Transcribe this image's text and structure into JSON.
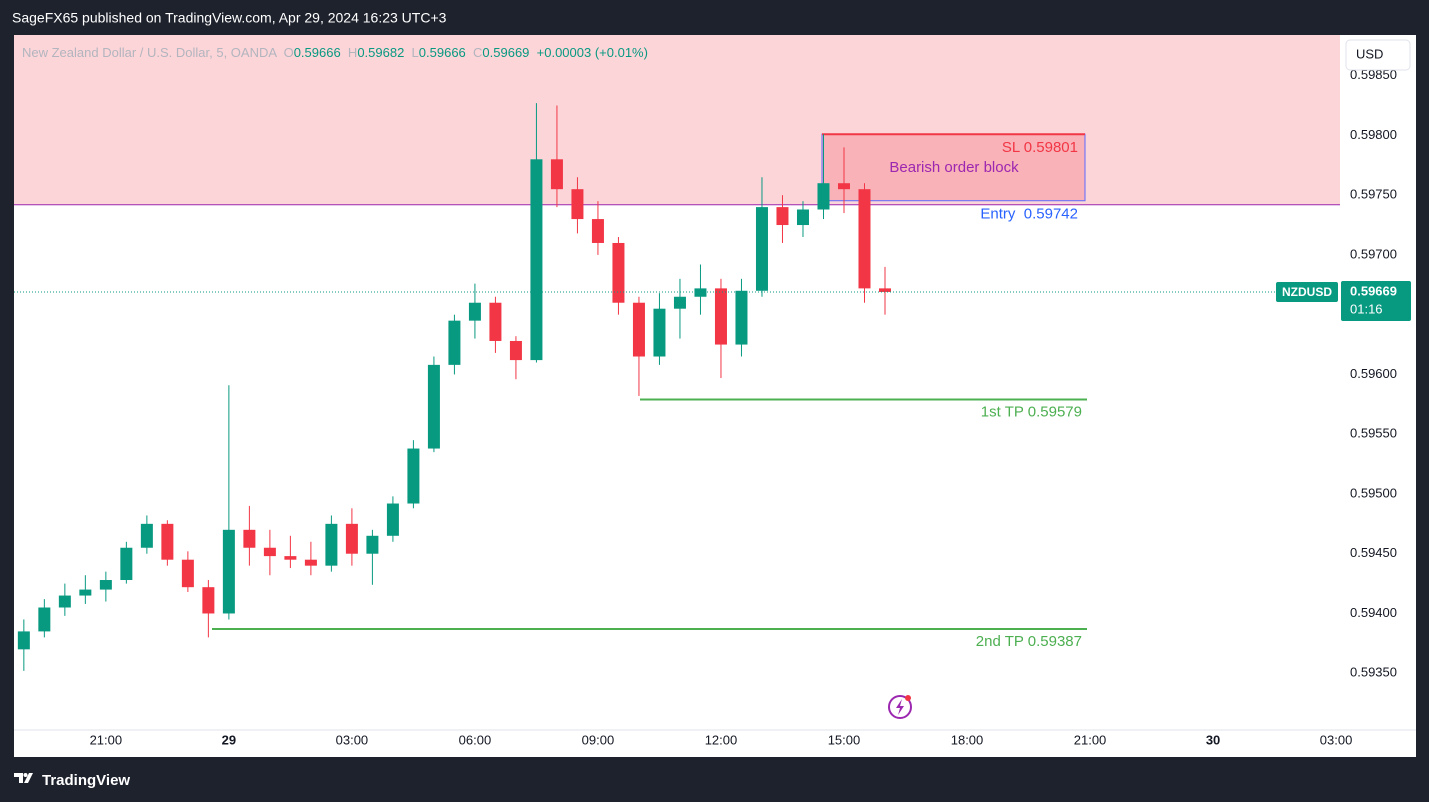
{
  "header": {
    "text": "SageFX65 published on TradingView.com, Apr 29, 2024 16:23 UTC+3"
  },
  "footer": {
    "brand": "TradingView"
  },
  "chart_data": {
    "type": "candlestick",
    "title": "New Zealand Dollar / U.S. Dollar, 5, OANDA",
    "ohlc_legend": [
      {
        "label": "O",
        "value": "0.59666"
      },
      {
        "label": "H",
        "value": "0.59682"
      },
      {
        "label": "L",
        "value": "0.59666"
      },
      {
        "label": "C",
        "value": "0.59669"
      }
    ],
    "change": "+0.00003 (+0.01%)",
    "currency": "USD",
    "symbol": "NZDUSD",
    "last_price": 0.59669,
    "countdown": "01:16",
    "up_color": "#089981",
    "down_color": "#f23645",
    "grid": false,
    "x": [
      -5,
      -4.5,
      -4,
      -3.5,
      -3,
      -2.5,
      -2,
      -1.5,
      -1,
      -0.5,
      0,
      0.5,
      1,
      1.5,
      2,
      2.5,
      3,
      3.5,
      4,
      4.5,
      5,
      5.5,
      6,
      6.5,
      7,
      7.5,
      8,
      8.5,
      9,
      9.5,
      10,
      10.5,
      11,
      11.5,
      12,
      12.5,
      13,
      13.5,
      14,
      14.5,
      15,
      15.5,
      16
    ],
    "open": [
      0.5937,
      0.59385,
      0.59405,
      0.59415,
      0.5942,
      0.59428,
      0.59455,
      0.59475,
      0.59445,
      0.59422,
      0.594,
      0.5947,
      0.59455,
      0.59448,
      0.59445,
      0.5944,
      0.59475,
      0.5945,
      0.59465,
      0.59492,
      0.59538,
      0.59608,
      0.59645,
      0.5966,
      0.59628,
      0.59612,
      0.5978,
      0.59755,
      0.5973,
      0.5971,
      0.5966,
      0.59615,
      0.59655,
      0.59665,
      0.59672,
      0.59625,
      0.5967,
      0.5974,
      0.59725,
      0.59738,
      0.5976,
      0.59755,
      0.59672
    ],
    "high": [
      0.59395,
      0.59412,
      0.59425,
      0.59432,
      0.59435,
      0.5946,
      0.59482,
      0.59478,
      0.59452,
      0.59428,
      0.59591,
      0.5949,
      0.5947,
      0.59465,
      0.5946,
      0.59482,
      0.59488,
      0.5947,
      0.59498,
      0.59545,
      0.59615,
      0.5965,
      0.59676,
      0.59665,
      0.59632,
      0.59827,
      0.59825,
      0.59765,
      0.59745,
      0.59715,
      0.59665,
      0.59668,
      0.5968,
      0.59692,
      0.5968,
      0.5968,
      0.59765,
      0.5975,
      0.59745,
      0.59801,
      0.5979,
      0.5976,
      0.5969
    ],
    "low": [
      0.59352,
      0.5938,
      0.59398,
      0.59408,
      0.5941,
      0.59425,
      0.5945,
      0.5944,
      0.59418,
      0.5938,
      0.59395,
      0.5944,
      0.59432,
      0.59438,
      0.59432,
      0.59435,
      0.5944,
      0.59424,
      0.5946,
      0.59488,
      0.59535,
      0.596,
      0.5963,
      0.59618,
      0.59596,
      0.5961,
      0.5974,
      0.59718,
      0.597,
      0.5965,
      0.59582,
      0.59608,
      0.5963,
      0.5965,
      0.59597,
      0.59615,
      0.59665,
      0.5971,
      0.59715,
      0.5973,
      0.59735,
      0.5966,
      0.5965
    ],
    "close": [
      0.59385,
      0.59405,
      0.59415,
      0.5942,
      0.59428,
      0.59455,
      0.59475,
      0.59445,
      0.59422,
      0.594,
      0.5947,
      0.59455,
      0.59448,
      0.59445,
      0.5944,
      0.59475,
      0.5945,
      0.59465,
      0.59492,
      0.59538,
      0.59608,
      0.59645,
      0.5966,
      0.59628,
      0.59612,
      0.5978,
      0.59755,
      0.5973,
      0.5971,
      0.5966,
      0.59615,
      0.59655,
      0.59665,
      0.59672,
      0.59625,
      0.5967,
      0.5974,
      0.59725,
      0.59738,
      0.5976,
      0.59755,
      0.59672,
      0.59669
    ],
    "xlim": [
      -5.24,
      27.12
    ],
    "xticks": [
      {
        "value": -3,
        "label": "21:00"
      },
      {
        "value": 0,
        "label": "29"
      },
      {
        "value": 3,
        "label": "03:00"
      },
      {
        "value": 6,
        "label": "06:00"
      },
      {
        "value": 9,
        "label": "09:00"
      },
      {
        "value": 12,
        "label": "12:00"
      },
      {
        "value": 15,
        "label": "15:00"
      },
      {
        "value": 18,
        "label": "18:00"
      },
      {
        "value": 21,
        "label": "21:00"
      },
      {
        "value": 24,
        "label": "30"
      },
      {
        "value": 27,
        "label": "03:00"
      }
    ],
    "ylim": [
      0.593,
      0.59884
    ],
    "yticks": [
      {
        "value": 0.5935,
        "label": "0.59350"
      },
      {
        "value": 0.594,
        "label": "0.59400"
      },
      {
        "value": 0.5945,
        "label": "0.59450"
      },
      {
        "value": 0.595,
        "label": "0.59500"
      },
      {
        "value": 0.5955,
        "label": "0.59550"
      },
      {
        "value": 0.596,
        "label": "0.59600"
      },
      {
        "value": 0.5965,
        "label": "0.59650"
      },
      {
        "value": 0.597,
        "label": "0.59700"
      },
      {
        "value": 0.5975,
        "label": "0.59750"
      },
      {
        "value": 0.598,
        "label": "0.59800"
      },
      {
        "value": 0.5985,
        "label": "0.59850"
      }
    ],
    "zone_label": "Bearish order block",
    "levels": [
      {
        "text": "SL 0.59801",
        "value": 0.59801,
        "color": "#f23645"
      },
      {
        "text": "Entry  0.59742",
        "value": 0.59742,
        "color": "#2962ff"
      },
      {
        "text": "1st TP 0.59579",
        "value": 0.59579,
        "color": "#4caf50"
      },
      {
        "text": "2nd TP 0.59387",
        "value": 0.59387,
        "color": "#4caf50"
      }
    ]
  }
}
